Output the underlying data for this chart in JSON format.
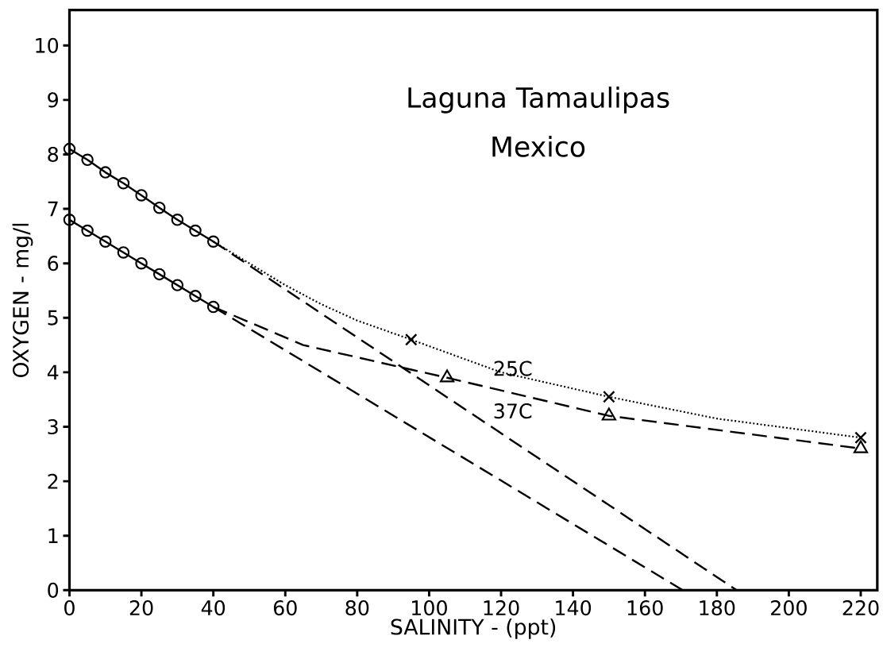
{
  "chart_data": {
    "type": "line",
    "title": "Laguna Tamaulipas",
    "subtitle": "Mexico",
    "xlabel": "SALINITY  - (ppt)",
    "ylabel": "OXYGEN - mg/l",
    "xlim": [
      0,
      224.6
    ],
    "ylim": [
      0,
      10.65
    ],
    "xticks": [
      0,
      20,
      40,
      60,
      80,
      100,
      120,
      140,
      160,
      180,
      200,
      220
    ],
    "yticks": [
      0,
      1,
      2,
      3,
      4,
      5,
      6,
      7,
      8,
      9,
      10
    ],
    "grid": false,
    "series": [
      {
        "color": "#000000",
        "marker": "circle",
        "line_style": "solid",
        "x": [
          0,
          5,
          10,
          15,
          20,
          25,
          30,
          35,
          40
        ],
        "values": [
          8.1,
          7.9,
          7.67,
          7.47,
          7.25,
          7.02,
          6.8,
          6.6,
          6.4
        ]
      },
      {
        "color": "#000000",
        "marker": "circle",
        "line_style": "solid",
        "x": [
          0,
          5,
          10,
          15,
          20,
          25,
          30,
          35,
          40
        ],
        "values": [
          6.8,
          6.6,
          6.4,
          6.2,
          6.0,
          5.8,
          5.6,
          5.4,
          5.2
        ]
      },
      {
        "name": "25C",
        "color": "#000000",
        "marker": "none",
        "line_style": "dotted",
        "x": [
          40,
          50,
          60,
          70,
          80,
          95,
          120,
          150,
          180,
          220
        ],
        "values": [
          6.4,
          6.0,
          5.6,
          5.25,
          4.95,
          4.6,
          4.0,
          3.55,
          3.15,
          2.8
        ]
      },
      {
        "type": "scatter",
        "color": "#000000",
        "marker": "cross",
        "x": [
          95,
          150,
          220
        ],
        "values": [
          4.6,
          3.55,
          2.8
        ]
      },
      {
        "name": "37C",
        "color": "#000000",
        "marker": "none",
        "line_style": "dashed",
        "x": [
          40,
          65,
          95,
          105,
          150,
          220
        ],
        "values": [
          5.2,
          4.5,
          4.05,
          3.9,
          3.2,
          2.6
        ]
      },
      {
        "type": "scatter",
        "color": "#000000",
        "marker": "triangle",
        "x": [
          105,
          150,
          220
        ],
        "values": [
          3.9,
          3.2,
          2.6
        ]
      },
      {
        "color": "#000000",
        "marker": "none",
        "line_style": "dashed",
        "x": [
          40,
          185.5
        ],
        "values": [
          6.4,
          0
        ]
      },
      {
        "color": "#000000",
        "marker": "none",
        "line_style": "dashed",
        "x": [
          40,
          170.5
        ],
        "values": [
          5.2,
          0
        ]
      }
    ]
  }
}
